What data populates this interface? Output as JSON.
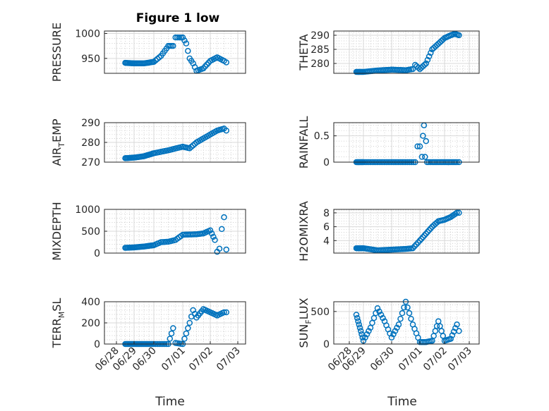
{
  "figure": {
    "title": "Figure 1 low"
  },
  "colors": {
    "series": "#0072bd",
    "axes": "#262626",
    "grid": "#d9d9d9",
    "background": "#ffffff"
  },
  "chart_data": [
    {
      "type": "scatter",
      "ylabel": "PRESSURE",
      "ylim": [
        920,
        1005
      ],
      "yticks": [
        950,
        1000
      ],
      "ytick_labels": [
        "950",
        "1000"
      ],
      "grid": true,
      "minor_grid": true,
      "marker": "circle",
      "series": [
        {
          "values": [
            [
              "06/28 12:00",
              941
            ],
            [
              "06/29 00:00",
              940
            ],
            [
              "06/29 12:00",
              940
            ],
            [
              "06/30 00:00",
              943
            ],
            [
              "06/30 06:00",
              955
            ],
            [
              "06/30 12:00",
              975
            ],
            [
              "06/30 16:00",
              975
            ],
            [
              "06/30 18:00",
              992
            ],
            [
              "07/01 00:00",
              992
            ],
            [
              "07/01 03:00",
              980
            ],
            [
              "07/01 06:00",
              950
            ],
            [
              "07/01 09:00",
              940
            ],
            [
              "07/01 12:00",
              925
            ],
            [
              "07/01 18:00",
              930
            ],
            [
              "07/02 00:00",
              945
            ],
            [
              "07/02 06:00",
              952
            ],
            [
              "07/02 12:00",
              945
            ],
            [
              "07/02 14:00",
              942
            ]
          ]
        }
      ]
    },
    {
      "type": "scatter",
      "ylabel": "THETA",
      "ylim": [
        276.5,
        291.5
      ],
      "yticks": [
        280,
        285,
        290
      ],
      "ytick_labels": [
        "280",
        "285",
        "290"
      ],
      "grid": true,
      "minor_grid": true,
      "marker": "circle",
      "series": [
        {
          "values": [
            [
              "06/28 12:00",
              277
            ],
            [
              "06/29 00:00",
              277
            ],
            [
              "06/29 12:00",
              277.5
            ],
            [
              "06/30 00:00",
              277.8
            ],
            [
              "06/30 12:00",
              277.6
            ],
            [
              "06/30 18:00",
              278
            ],
            [
              "06/30 20:00",
              279.5
            ],
            [
              "07/01 00:00",
              278
            ],
            [
              "07/01 06:00",
              280
            ],
            [
              "07/01 12:00",
              285
            ],
            [
              "07/01 18:00",
              287
            ],
            [
              "07/02 00:00",
              289
            ],
            [
              "07/02 06:00",
              290
            ],
            [
              "07/02 10:00",
              290.5
            ],
            [
              "07/02 14:00",
              290
            ]
          ]
        }
      ]
    },
    {
      "type": "scatter",
      "ylabel": "AIR",
      "ylabel_sub": "T",
      "ylabel_suffix": "EMP",
      "ylim": [
        270,
        290
      ],
      "yticks": [
        270,
        280,
        290
      ],
      "ytick_labels": [
        "270",
        "280",
        "290"
      ],
      "grid": true,
      "minor_grid": true,
      "marker": "circle",
      "series": [
        {
          "values": [
            [
              "06/28 12:00",
              272
            ],
            [
              "06/29 00:00",
              272.3
            ],
            [
              "06/29 12:00",
              273
            ],
            [
              "06/30 00:00",
              274.5
            ],
            [
              "06/30 12:00",
              276
            ],
            [
              "07/01 00:00",
              277.8
            ],
            [
              "07/01 06:00",
              277
            ],
            [
              "07/01 12:00",
              280
            ],
            [
              "07/01 18:00",
              282
            ],
            [
              "07/02 00:00",
              284
            ],
            [
              "07/02 06:00",
              286
            ],
            [
              "07/02 12:00",
              287
            ],
            [
              "07/02 14:00",
              286
            ]
          ]
        }
      ]
    },
    {
      "type": "scatter",
      "ylabel": "RAINFALL",
      "ylim": [
        0,
        0.75
      ],
      "yticks": [
        0,
        0.5
      ],
      "ytick_labels": [
        "0",
        "0.5"
      ],
      "grid": true,
      "minor_grid": true,
      "marker": "circle",
      "series": [
        {
          "values": [
            [
              "06/28 12:00",
              0
            ],
            [
              "06/29 00:00",
              0
            ],
            [
              "06/29 12:00",
              0
            ],
            [
              "06/30 00:00",
              0
            ],
            [
              "06/30 12:00",
              0
            ],
            [
              "06/30 20:00",
              0
            ],
            [
              "06/30 22:00",
              0.3
            ],
            [
              "07/01 00:00",
              0.3
            ],
            [
              "07/01 02:00",
              0.1
            ],
            [
              "07/01 03:00",
              0.5
            ],
            [
              "07/01 04:00",
              0.7
            ],
            [
              "07/01 05:00",
              0.1
            ],
            [
              "07/01 06:00",
              0.4
            ],
            [
              "07/01 07:00",
              0
            ],
            [
              "07/01 12:00",
              0
            ],
            [
              "07/02 00:00",
              0
            ],
            [
              "07/02 12:00",
              0
            ],
            [
              "07/02 14:00",
              0
            ]
          ]
        }
      ]
    },
    {
      "type": "scatter",
      "ylabel": "MIXDEPTH",
      "ylim": [
        0,
        1000
      ],
      "yticks": [
        0,
        500,
        1000
      ],
      "ytick_labels": [
        "0",
        "500",
        "1000"
      ],
      "grid": true,
      "minor_grid": true,
      "marker": "circle",
      "series": [
        {
          "values": [
            [
              "06/28 12:00",
              120
            ],
            [
              "06/29 00:00",
              130
            ],
            [
              "06/29 12:00",
              150
            ],
            [
              "06/30 00:00",
              180
            ],
            [
              "06/30 06:00",
              250
            ],
            [
              "06/30 12:00",
              260
            ],
            [
              "06/30 18:00",
              300
            ],
            [
              "07/01 00:00",
              420
            ],
            [
              "07/01 12:00",
              430
            ],
            [
              "07/01 18:00",
              450
            ],
            [
              "07/02 00:00",
              520
            ],
            [
              "07/02 04:00",
              300
            ],
            [
              "07/02 06:00",
              30
            ],
            [
              "07/02 08:00",
              100
            ],
            [
              "07/02 10:00",
              550
            ],
            [
              "07/02 12:00",
              820
            ],
            [
              "07/02 14:00",
              80
            ]
          ]
        }
      ]
    },
    {
      "type": "scatter",
      "ylabel": "H2OMIXRA",
      "ylim": [
        2.2,
        8.5
      ],
      "yticks": [
        4,
        6,
        8
      ],
      "ytick_labels": [
        "4",
        "6",
        "8"
      ],
      "grid": true,
      "minor_grid": true,
      "marker": "circle",
      "series": [
        {
          "values": [
            [
              "06/28 12:00",
              2.9
            ],
            [
              "06/29 00:00",
              2.9
            ],
            [
              "06/29 12:00",
              2.6
            ],
            [
              "06/30 00:00",
              2.7
            ],
            [
              "06/30 12:00",
              2.8
            ],
            [
              "06/30 18:00",
              2.9
            ],
            [
              "07/01 00:00",
              4
            ],
            [
              "07/01 06:00",
              5
            ],
            [
              "07/01 12:00",
              6
            ],
            [
              "07/01 18:00",
              6.8
            ],
            [
              "07/02 00:00",
              7
            ],
            [
              "07/02 06:00",
              7.4
            ],
            [
              "07/02 12:00",
              8
            ],
            [
              "07/02 14:00",
              8
            ]
          ]
        }
      ]
    },
    {
      "type": "scatter",
      "ylabel": "TERR",
      "ylabel_sub": "M",
      "ylabel_suffix": "SL",
      "ylim": [
        0,
        400
      ],
      "yticks": [
        0,
        200,
        400
      ],
      "ytick_labels": [
        "0",
        "200",
        "400"
      ],
      "xlim": [
        "06/28",
        "07/03"
      ],
      "xticks": [
        "06/28",
        "06/29",
        "06/30",
        "07/01",
        "07/02",
        "07/03"
      ],
      "xlabel": "Time",
      "grid": true,
      "minor_grid": true,
      "marker": "circle",
      "series": [
        {
          "values": [
            [
              "06/28 12:00",
              0
            ],
            [
              "06/29 00:00",
              0
            ],
            [
              "06/29 12:00",
              0
            ],
            [
              "06/30 00:00",
              0
            ],
            [
              "06/30 12:00",
              0
            ],
            [
              "06/30 16:00",
              150
            ],
            [
              "06/30 18:00",
              10
            ],
            [
              "07/01 00:00",
              0
            ],
            [
              "07/01 03:00",
              100
            ],
            [
              "07/01 06:00",
              200
            ],
            [
              "07/01 09:00",
              320
            ],
            [
              "07/01 12:00",
              250
            ],
            [
              "07/01 18:00",
              330
            ],
            [
              "07/02 00:00",
              300
            ],
            [
              "07/02 06:00",
              270
            ],
            [
              "07/02 12:00",
              300
            ],
            [
              "07/02 14:00",
              300
            ]
          ]
        }
      ]
    },
    {
      "type": "scatter",
      "ylabel": "SUN",
      "ylabel_sub": "F",
      "ylabel_suffix": "LUX",
      "ylim": [
        0,
        650
      ],
      "yticks": [
        0,
        500
      ],
      "ytick_labels": [
        "0",
        "500"
      ],
      "xlim": [
        "06/28",
        "07/03"
      ],
      "xticks": [
        "06/28",
        "06/29",
        "06/30",
        "07/01",
        "07/02",
        "07/03"
      ],
      "xlabel": "Time",
      "grid": true,
      "minor_grid": true,
      "marker": "circle",
      "series": [
        {
          "values": [
            [
              "06/28 12:00",
              450
            ],
            [
              "06/28 18:00",
              250
            ],
            [
              "06/29 00:00",
              50
            ],
            [
              "06/29 06:00",
              250
            ],
            [
              "06/29 12:00",
              550
            ],
            [
              "06/29 18:00",
              350
            ],
            [
              "06/30 00:00",
              100
            ],
            [
              "06/30 06:00",
              300
            ],
            [
              "06/30 12:00",
              650
            ],
            [
              "06/30 18:00",
              300
            ],
            [
              "07/01 00:00",
              30
            ],
            [
              "07/01 06:00",
              30
            ],
            [
              "07/01 12:00",
              50
            ],
            [
              "07/01 18:00",
              350
            ],
            [
              "07/02 00:00",
              50
            ],
            [
              "07/02 06:00",
              80
            ],
            [
              "07/02 12:00",
              300
            ],
            [
              "07/02 14:00",
              200
            ]
          ]
        }
      ]
    }
  ]
}
